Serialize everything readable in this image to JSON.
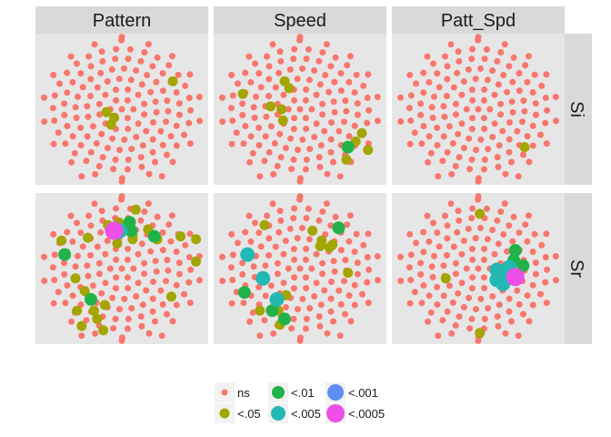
{
  "chart_data": {
    "type": "scatter",
    "facet_columns": [
      "Pattern",
      "Speed",
      "Patt_Spd"
    ],
    "facet_rows": [
      "Si",
      "Sr"
    ],
    "background_points": "ns",
    "colors": {
      "ns": "#f8766d",
      "<.05": "#a3a500",
      "<.01": "#21b24a",
      "<.005": "#22b8b4",
      "<.001": "#5f8ff5",
      "<.0005": "#ee4fe6",
      "panel_bg": "#e6e6e6",
      "strip_bg": "#d9d9d9"
    },
    "legend": {
      "position": "bottom",
      "items": [
        "ns",
        "<.05",
        "<.01",
        "<.005",
        "<.001",
        "<.0005"
      ]
    },
    "significant_points": {
      "Pattern|Si": [
        {
          "x": 0.83,
          "y": 0.7,
          "level": "<.05"
        },
        {
          "x": 0.4,
          "y": 0.48,
          "level": "<.05"
        },
        {
          "x": 0.45,
          "y": 0.44,
          "level": "<.05"
        },
        {
          "x": 0.43,
          "y": 0.39,
          "level": "<.05"
        }
      ],
      "Speed|Si": [
        {
          "x": 0.13,
          "y": 0.61,
          "level": "<.05"
        },
        {
          "x": 0.4,
          "y": 0.7,
          "level": "<.05"
        },
        {
          "x": 0.43,
          "y": 0.65,
          "level": "<.05"
        },
        {
          "x": 0.31,
          "y": 0.52,
          "level": "<.05"
        },
        {
          "x": 0.38,
          "y": 0.5,
          "level": "<.05"
        },
        {
          "x": 0.39,
          "y": 0.42,
          "level": "<.05"
        },
        {
          "x": 0.9,
          "y": 0.33,
          "level": "<.05"
        },
        {
          "x": 0.86,
          "y": 0.27,
          "level": "<.05"
        },
        {
          "x": 0.94,
          "y": 0.21,
          "level": "<.05"
        },
        {
          "x": 0.8,
          "y": 0.14,
          "level": "<.05"
        },
        {
          "x": 0.81,
          "y": 0.23,
          "level": "<.01"
        }
      ],
      "Patt_Spd|Si": [
        {
          "x": 0.8,
          "y": 0.23,
          "level": "<.05"
        }
      ],
      "Pattern|Sr": [
        {
          "x": 0.59,
          "y": 0.92,
          "level": "<.05"
        },
        {
          "x": 0.41,
          "y": 0.81,
          "level": "<.05"
        },
        {
          "x": 0.48,
          "y": 0.83,
          "level": "<.05"
        },
        {
          "x": 0.67,
          "y": 0.78,
          "level": "<.05"
        },
        {
          "x": 0.73,
          "y": 0.71,
          "level": "<.05"
        },
        {
          "x": 0.57,
          "y": 0.71,
          "level": "<.05"
        },
        {
          "x": 0.47,
          "y": 0.68,
          "level": "<.05"
        },
        {
          "x": 0.11,
          "y": 0.7,
          "level": "<.05"
        },
        {
          "x": 0.28,
          "y": 0.72,
          "level": "<.05"
        },
        {
          "x": 0.57,
          "y": 0.74,
          "level": "<.05"
        },
        {
          "x": 0.88,
          "y": 0.73,
          "level": "<.05"
        },
        {
          "x": 0.98,
          "y": 0.71,
          "level": "<.05"
        },
        {
          "x": 0.98,
          "y": 0.55,
          "level": "<.05"
        },
        {
          "x": 0.2,
          "y": 0.43,
          "level": "<.05"
        },
        {
          "x": 0.26,
          "y": 0.34,
          "level": "<.05"
        },
        {
          "x": 0.39,
          "y": 0.24,
          "level": "<.05"
        },
        {
          "x": 0.21,
          "y": 0.2,
          "level": "<.05"
        },
        {
          "x": 0.32,
          "y": 0.2,
          "level": "<.05"
        },
        {
          "x": 0.34,
          "y": 0.14,
          "level": "<.05"
        },
        {
          "x": 0.24,
          "y": 0.09,
          "level": "<.05"
        },
        {
          "x": 0.38,
          "y": 0.06,
          "level": "<.05"
        },
        {
          "x": 0.82,
          "y": 0.3,
          "level": "<.05"
        },
        {
          "x": 0.13,
          "y": 0.6,
          "level": "<.01"
        },
        {
          "x": 0.3,
          "y": 0.28,
          "level": "<.01"
        },
        {
          "x": 0.56,
          "y": 0.77,
          "level": "<.01"
        },
        {
          "x": 0.55,
          "y": 0.83,
          "level": "<.01"
        },
        {
          "x": 0.71,
          "y": 0.73,
          "level": "<.01"
        },
        {
          "x": 0.49,
          "y": 0.77,
          "level": "<.005"
        },
        {
          "x": 0.47,
          "y": 0.76,
          "level": "<.005"
        },
        {
          "x": 0.45,
          "y": 0.77,
          "level": "<.0005"
        }
      ],
      "Speed|Sr": [
        {
          "x": 0.27,
          "y": 0.81,
          "level": "<.05"
        },
        {
          "x": 0.58,
          "y": 0.77,
          "level": "<.05"
        },
        {
          "x": 0.64,
          "y": 0.7,
          "level": "<.05"
        },
        {
          "x": 0.71,
          "y": 0.67,
          "level": "<.05"
        },
        {
          "x": 0.63,
          "y": 0.66,
          "level": "<.05"
        },
        {
          "x": 0.69,
          "y": 0.65,
          "level": "<.05"
        },
        {
          "x": 0.81,
          "y": 0.47,
          "level": "<.05"
        },
        {
          "x": 0.41,
          "y": 0.31,
          "level": "<.05"
        },
        {
          "x": 0.36,
          "y": 0.2,
          "level": "<.05"
        },
        {
          "x": 0.24,
          "y": 0.2,
          "level": "<.05"
        },
        {
          "x": 0.37,
          "y": 0.1,
          "level": "<.05"
        },
        {
          "x": 0.75,
          "y": 0.79,
          "level": "<.01"
        },
        {
          "x": 0.14,
          "y": 0.33,
          "level": "<.01"
        },
        {
          "x": 0.32,
          "y": 0.2,
          "level": "<.01"
        },
        {
          "x": 0.4,
          "y": 0.14,
          "level": "<.01"
        },
        {
          "x": 0.16,
          "y": 0.6,
          "level": "<.005"
        },
        {
          "x": 0.26,
          "y": 0.43,
          "level": "<.005"
        },
        {
          "x": 0.35,
          "y": 0.28,
          "level": "<.005"
        }
      ],
      "Patt_Spd|Sr": [
        {
          "x": 0.51,
          "y": 0.89,
          "level": "<.05"
        },
        {
          "x": 0.29,
          "y": 0.43,
          "level": "<.05"
        },
        {
          "x": 0.51,
          "y": 0.04,
          "level": "<.05"
        },
        {
          "x": 0.74,
          "y": 0.63,
          "level": "<.01"
        },
        {
          "x": 0.73,
          "y": 0.56,
          "level": "<.01"
        },
        {
          "x": 0.79,
          "y": 0.52,
          "level": "<.01"
        },
        {
          "x": 0.62,
          "y": 0.49,
          "level": "<.005"
        },
        {
          "x": 0.66,
          "y": 0.47,
          "level": "<.005"
        },
        {
          "x": 0.71,
          "y": 0.45,
          "level": "<.005"
        },
        {
          "x": 0.7,
          "y": 0.51,
          "level": "<.005"
        },
        {
          "x": 0.62,
          "y": 0.42,
          "level": "<.005"
        },
        {
          "x": 0.66,
          "y": 0.39,
          "level": "<.005"
        },
        {
          "x": 0.74,
          "y": 0.44,
          "level": "<.0005"
        }
      ]
    }
  }
}
